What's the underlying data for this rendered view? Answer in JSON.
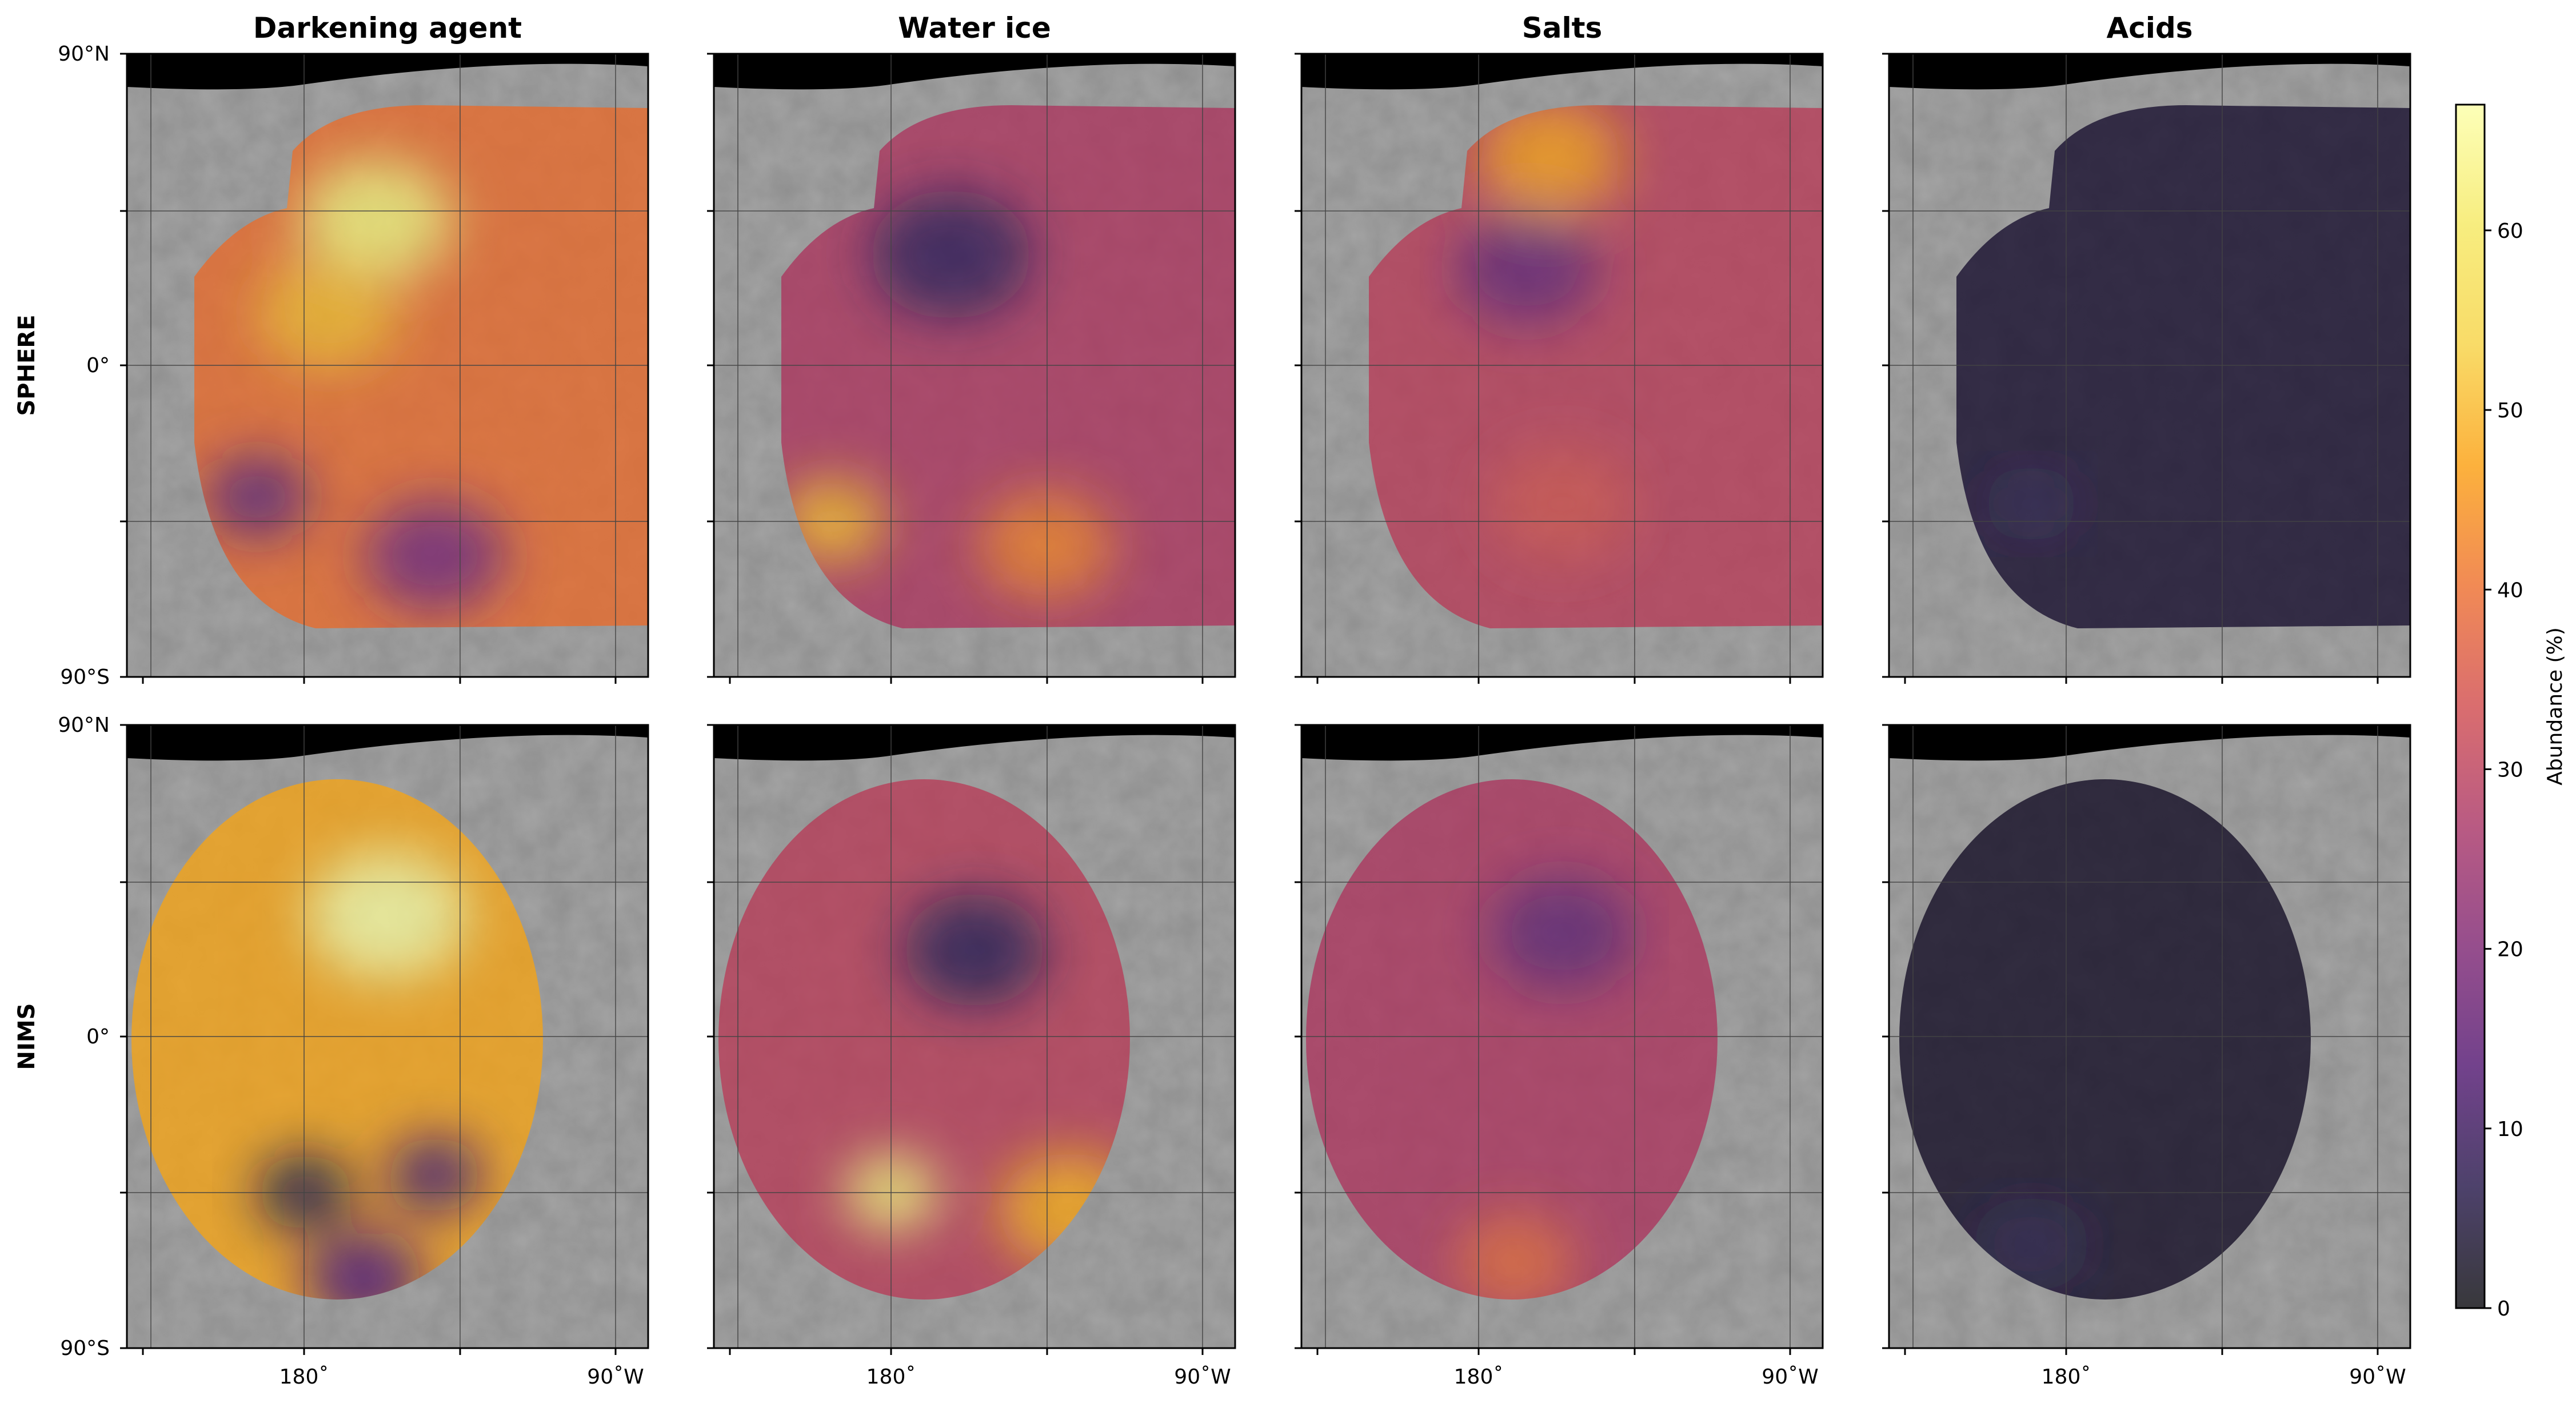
{
  "chart_data": {
    "type": "heatmap",
    "column_titles": [
      "Darkening agent",
      "Water ice",
      "Salts",
      "Acids"
    ],
    "row_labels": [
      "SPHERE",
      "NIMS"
    ],
    "lat_tick_labels": [
      "90°N",
      "0°",
      "90°S"
    ],
    "lon_tick_labels": [
      "180˚",
      "90˚W"
    ],
    "colorbar": {
      "label": "Abundance (%)",
      "ticks": [
        0,
        10,
        20,
        30,
        40,
        50,
        60
      ],
      "range": [
        0,
        67
      ],
      "colormap": "inferno",
      "alpha": 0.75
    },
    "panels": [
      {
        "row": "SPHERE",
        "column": "Darkening agent",
        "mean_abundance": 40,
        "range": [
          15,
          64
        ],
        "regions": [
          {
            "lon_deg": 155,
            "lat_deg": 42,
            "value": 62,
            "extent_deg": 32
          },
          {
            "lon_deg": 205,
            "lat_deg": -38,
            "value": 16,
            "extent_deg": 22
          },
          {
            "lon_deg": 130,
            "lat_deg": -55,
            "value": 20,
            "extent_deg": 30
          },
          {
            "lon_deg": 175,
            "lat_deg": 15,
            "value": 50,
            "extent_deg": 30
          }
        ]
      },
      {
        "row": "SPHERE",
        "column": "Water ice",
        "mean_abundance": 28,
        "range": [
          8,
          56
        ],
        "regions": [
          {
            "lon_deg": 160,
            "lat_deg": 32,
            "value": 9,
            "extent_deg": 34
          },
          {
            "lon_deg": 210,
            "lat_deg": -45,
            "value": 50,
            "extent_deg": 22
          },
          {
            "lon_deg": 120,
            "lat_deg": -52,
            "value": 42,
            "extent_deg": 28
          }
        ]
      },
      {
        "row": "SPHERE",
        "column": "Salts",
        "mean_abundance": 30,
        "range": [
          14,
          48
        ],
        "regions": [
          {
            "lon_deg": 155,
            "lat_deg": 60,
            "value": 46,
            "extent_deg": 30
          },
          {
            "lon_deg": 165,
            "lat_deg": 28,
            "value": 17,
            "extent_deg": 30
          },
          {
            "lon_deg": 150,
            "lat_deg": -40,
            "value": 34,
            "extent_deg": 30
          }
        ]
      },
      {
        "row": "SPHERE",
        "column": "Acids",
        "mean_abundance": 4,
        "range": [
          2,
          8
        ],
        "regions": [
          {
            "lon_deg": 200,
            "lat_deg": -40,
            "value": 7,
            "extent_deg": 20
          }
        ]
      },
      {
        "row": "NIMS",
        "column": "Darkening agent",
        "mean_abundance": 48,
        "range": [
          6,
          66
        ],
        "regions": [
          {
            "lon_deg": 150,
            "lat_deg": 35,
            "value": 66,
            "extent_deg": 34
          },
          {
            "lon_deg": 185,
            "lat_deg": -45,
            "value": 6,
            "extent_deg": 20
          },
          {
            "lon_deg": 130,
            "lat_deg": -40,
            "value": 12,
            "extent_deg": 20
          },
          {
            "lon_deg": 160,
            "lat_deg": -70,
            "value": 14,
            "extent_deg": 25
          }
        ]
      },
      {
        "row": "NIMS",
        "column": "Water ice",
        "mean_abundance": 30,
        "range": [
          8,
          64
        ],
        "regions": [
          {
            "lon_deg": 150,
            "lat_deg": 25,
            "value": 8,
            "extent_deg": 30
          },
          {
            "lon_deg": 185,
            "lat_deg": -45,
            "value": 62,
            "extent_deg": 20
          },
          {
            "lon_deg": 110,
            "lat_deg": -50,
            "value": 48,
            "extent_deg": 30
          }
        ]
      },
      {
        "row": "NIMS",
        "column": "Salts",
        "mean_abundance": 28,
        "range": [
          15,
          40
        ],
        "regions": [
          {
            "lon_deg": 150,
            "lat_deg": 30,
            "value": 16,
            "extent_deg": 30
          },
          {
            "lon_deg": 170,
            "lat_deg": -65,
            "value": 38,
            "extent_deg": 25
          }
        ]
      },
      {
        "row": "NIMS",
        "column": "Acids",
        "mean_abundance": 3,
        "range": [
          1,
          6
        ],
        "regions": [
          {
            "lon_deg": 200,
            "lat_deg": -60,
            "value": 6,
            "extent_deg": 25
          }
        ]
      }
    ]
  }
}
